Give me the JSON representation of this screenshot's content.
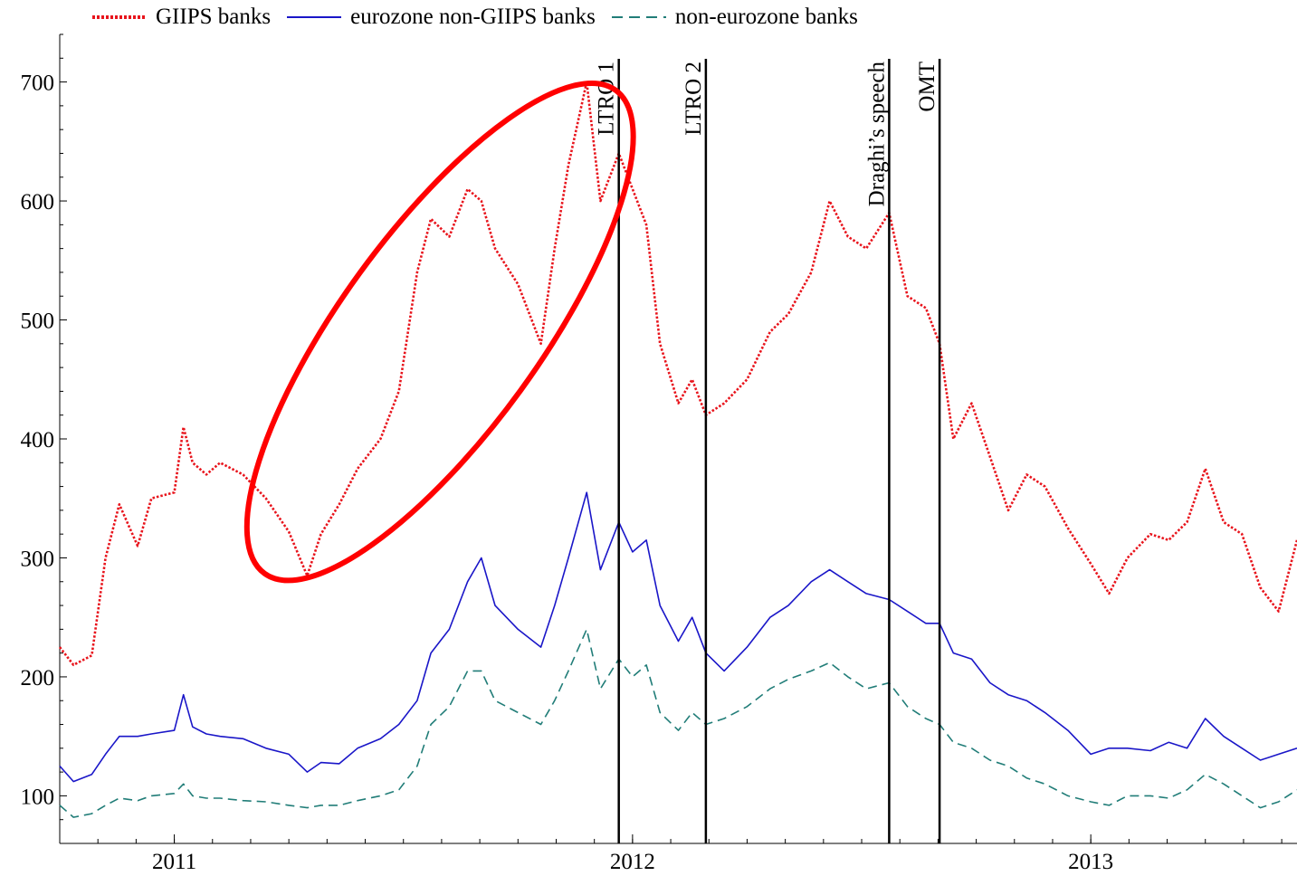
{
  "legend": [
    {
      "label": "GIIPS banks",
      "color": "#e8141c",
      "dash": "dotted"
    },
    {
      "label": "eurozone non-GIIPS banks",
      "color": "#1a16c8",
      "dash": "solid"
    },
    {
      "label": "non-eurozone banks",
      "color": "#217d78",
      "dash": "dashed"
    }
  ],
  "chart_data": {
    "type": "line",
    "x_unit": "year (decimal)",
    "xlim": [
      2010.75,
      2013.45
    ],
    "ylim": [
      60,
      740
    ],
    "x_ticks": [
      {
        "value": 2011.0,
        "label": "2011"
      },
      {
        "value": 2012.0,
        "label": "2012"
      },
      {
        "value": 2013.0,
        "label": "2013"
      }
    ],
    "y_ticks": [
      100,
      200,
      300,
      400,
      500,
      600,
      700
    ],
    "events": [
      {
        "label": "LTRO 1",
        "x": 2011.97
      },
      {
        "label": "LTRO 2",
        "x": 2012.16
      },
      {
        "label": "Draghi’s speech",
        "x": 2012.56
      },
      {
        "label": "OMT",
        "x": 2012.67
      }
    ],
    "highlight_ellipse": {
      "center_x": 2011.58,
      "center_y": 490,
      "color": "#ff0000",
      "note": "red ellipse around the GIIPS rise before LTRO 1"
    },
    "series": [
      {
        "name": "GIIPS banks",
        "color": "#e8141c",
        "style": "dotted",
        "x": [
          2010.75,
          2010.78,
          2010.82,
          2010.85,
          2010.88,
          2010.92,
          2010.95,
          2011.0,
          2011.02,
          2011.04,
          2011.07,
          2011.1,
          2011.15,
          2011.2,
          2011.25,
          2011.29,
          2011.32,
          2011.36,
          2011.4,
          2011.45,
          2011.49,
          2011.53,
          2011.56,
          2011.6,
          2011.64,
          2011.67,
          2011.7,
          2011.75,
          2011.8,
          2011.83,
          2011.86,
          2011.9,
          2011.93,
          2011.97,
          2012.0,
          2012.03,
          2012.06,
          2012.1,
          2012.13,
          2012.16,
          2012.2,
          2012.25,
          2012.3,
          2012.34,
          2012.39,
          2012.43,
          2012.47,
          2012.51,
          2012.56,
          2012.6,
          2012.64,
          2012.67,
          2012.7,
          2012.74,
          2012.78,
          2012.82,
          2012.86,
          2012.9,
          2012.95,
          2013.0,
          2013.04,
          2013.08,
          2013.13,
          2013.17,
          2013.21,
          2013.25,
          2013.29,
          2013.33,
          2013.37,
          2013.41,
          2013.45
        ],
        "values": [
          225,
          210,
          218,
          300,
          345,
          310,
          350,
          355,
          410,
          380,
          370,
          380,
          370,
          350,
          322,
          285,
          320,
          345,
          375,
          400,
          440,
          540,
          585,
          570,
          610,
          600,
          560,
          530,
          480,
          560,
          630,
          700,
          600,
          640,
          610,
          580,
          480,
          430,
          450,
          420,
          430,
          450,
          490,
          505,
          540,
          600,
          570,
          560,
          590,
          520,
          510,
          480,
          400,
          430,
          385,
          340,
          370,
          360,
          325,
          295,
          270,
          300,
          320,
          315,
          330,
          375,
          330,
          320,
          275,
          255,
          315
        ]
      },
      {
        "name": "eurozone non-GIIPS banks",
        "color": "#1a16c8",
        "style": "solid",
        "x": [
          2010.75,
          2010.78,
          2010.82,
          2010.85,
          2010.88,
          2010.92,
          2010.95,
          2011.0,
          2011.02,
          2011.04,
          2011.07,
          2011.1,
          2011.15,
          2011.2,
          2011.25,
          2011.29,
          2011.32,
          2011.36,
          2011.4,
          2011.45,
          2011.49,
          2011.53,
          2011.56,
          2011.6,
          2011.64,
          2011.67,
          2011.7,
          2011.75,
          2011.8,
          2011.83,
          2011.86,
          2011.9,
          2011.93,
          2011.97,
          2012.0,
          2012.03,
          2012.06,
          2012.1,
          2012.13,
          2012.16,
          2012.2,
          2012.25,
          2012.3,
          2012.34,
          2012.39,
          2012.43,
          2012.47,
          2012.51,
          2012.56,
          2012.6,
          2012.64,
          2012.67,
          2012.7,
          2012.74,
          2012.78,
          2012.82,
          2012.86,
          2012.9,
          2012.95,
          2013.0,
          2013.04,
          2013.08,
          2013.13,
          2013.17,
          2013.21,
          2013.25,
          2013.29,
          2013.33,
          2013.37,
          2013.41,
          2013.45
        ],
        "values": [
          125,
          112,
          118,
          135,
          150,
          150,
          152,
          155,
          185,
          158,
          152,
          150,
          148,
          140,
          135,
          120,
          128,
          127,
          140,
          148,
          160,
          180,
          220,
          240,
          280,
          300,
          260,
          240,
          225,
          260,
          300,
          355,
          290,
          330,
          305,
          315,
          260,
          230,
          250,
          220,
          205,
          225,
          250,
          260,
          280,
          290,
          280,
          270,
          265,
          255,
          245,
          245,
          220,
          215,
          195,
          185,
          180,
          170,
          155,
          135,
          140,
          140,
          138,
          145,
          140,
          165,
          150,
          140,
          130,
          135,
          140
        ]
      },
      {
        "name": "non-eurozone banks",
        "color": "#217d78",
        "style": "dashed",
        "x": [
          2010.75,
          2010.78,
          2010.82,
          2010.85,
          2010.88,
          2010.92,
          2010.95,
          2011.0,
          2011.02,
          2011.04,
          2011.07,
          2011.1,
          2011.15,
          2011.2,
          2011.25,
          2011.29,
          2011.32,
          2011.36,
          2011.4,
          2011.45,
          2011.49,
          2011.53,
          2011.56,
          2011.6,
          2011.64,
          2011.67,
          2011.7,
          2011.75,
          2011.8,
          2011.83,
          2011.86,
          2011.9,
          2011.93,
          2011.97,
          2012.0,
          2012.03,
          2012.06,
          2012.1,
          2012.13,
          2012.16,
          2012.2,
          2012.25,
          2012.3,
          2012.34,
          2012.39,
          2012.43,
          2012.47,
          2012.51,
          2012.56,
          2012.6,
          2012.64,
          2012.67,
          2012.7,
          2012.74,
          2012.78,
          2012.82,
          2012.86,
          2012.9,
          2012.95,
          2013.0,
          2013.04,
          2013.08,
          2013.13,
          2013.17,
          2013.21,
          2013.25,
          2013.29,
          2013.33,
          2013.37,
          2013.41,
          2013.45
        ],
        "values": [
          92,
          82,
          85,
          92,
          98,
          96,
          100,
          102,
          110,
          100,
          98,
          98,
          96,
          95,
          92,
          90,
          92,
          92,
          96,
          100,
          105,
          125,
          160,
          175,
          205,
          205,
          180,
          170,
          160,
          180,
          205,
          240,
          190,
          215,
          200,
          210,
          170,
          155,
          170,
          160,
          165,
          175,
          190,
          198,
          205,
          212,
          200,
          190,
          195,
          175,
          165,
          160,
          145,
          140,
          130,
          125,
          115,
          110,
          100,
          95,
          92,
          100,
          100,
          98,
          105,
          118,
          110,
          100,
          90,
          95,
          105
        ]
      }
    ]
  }
}
